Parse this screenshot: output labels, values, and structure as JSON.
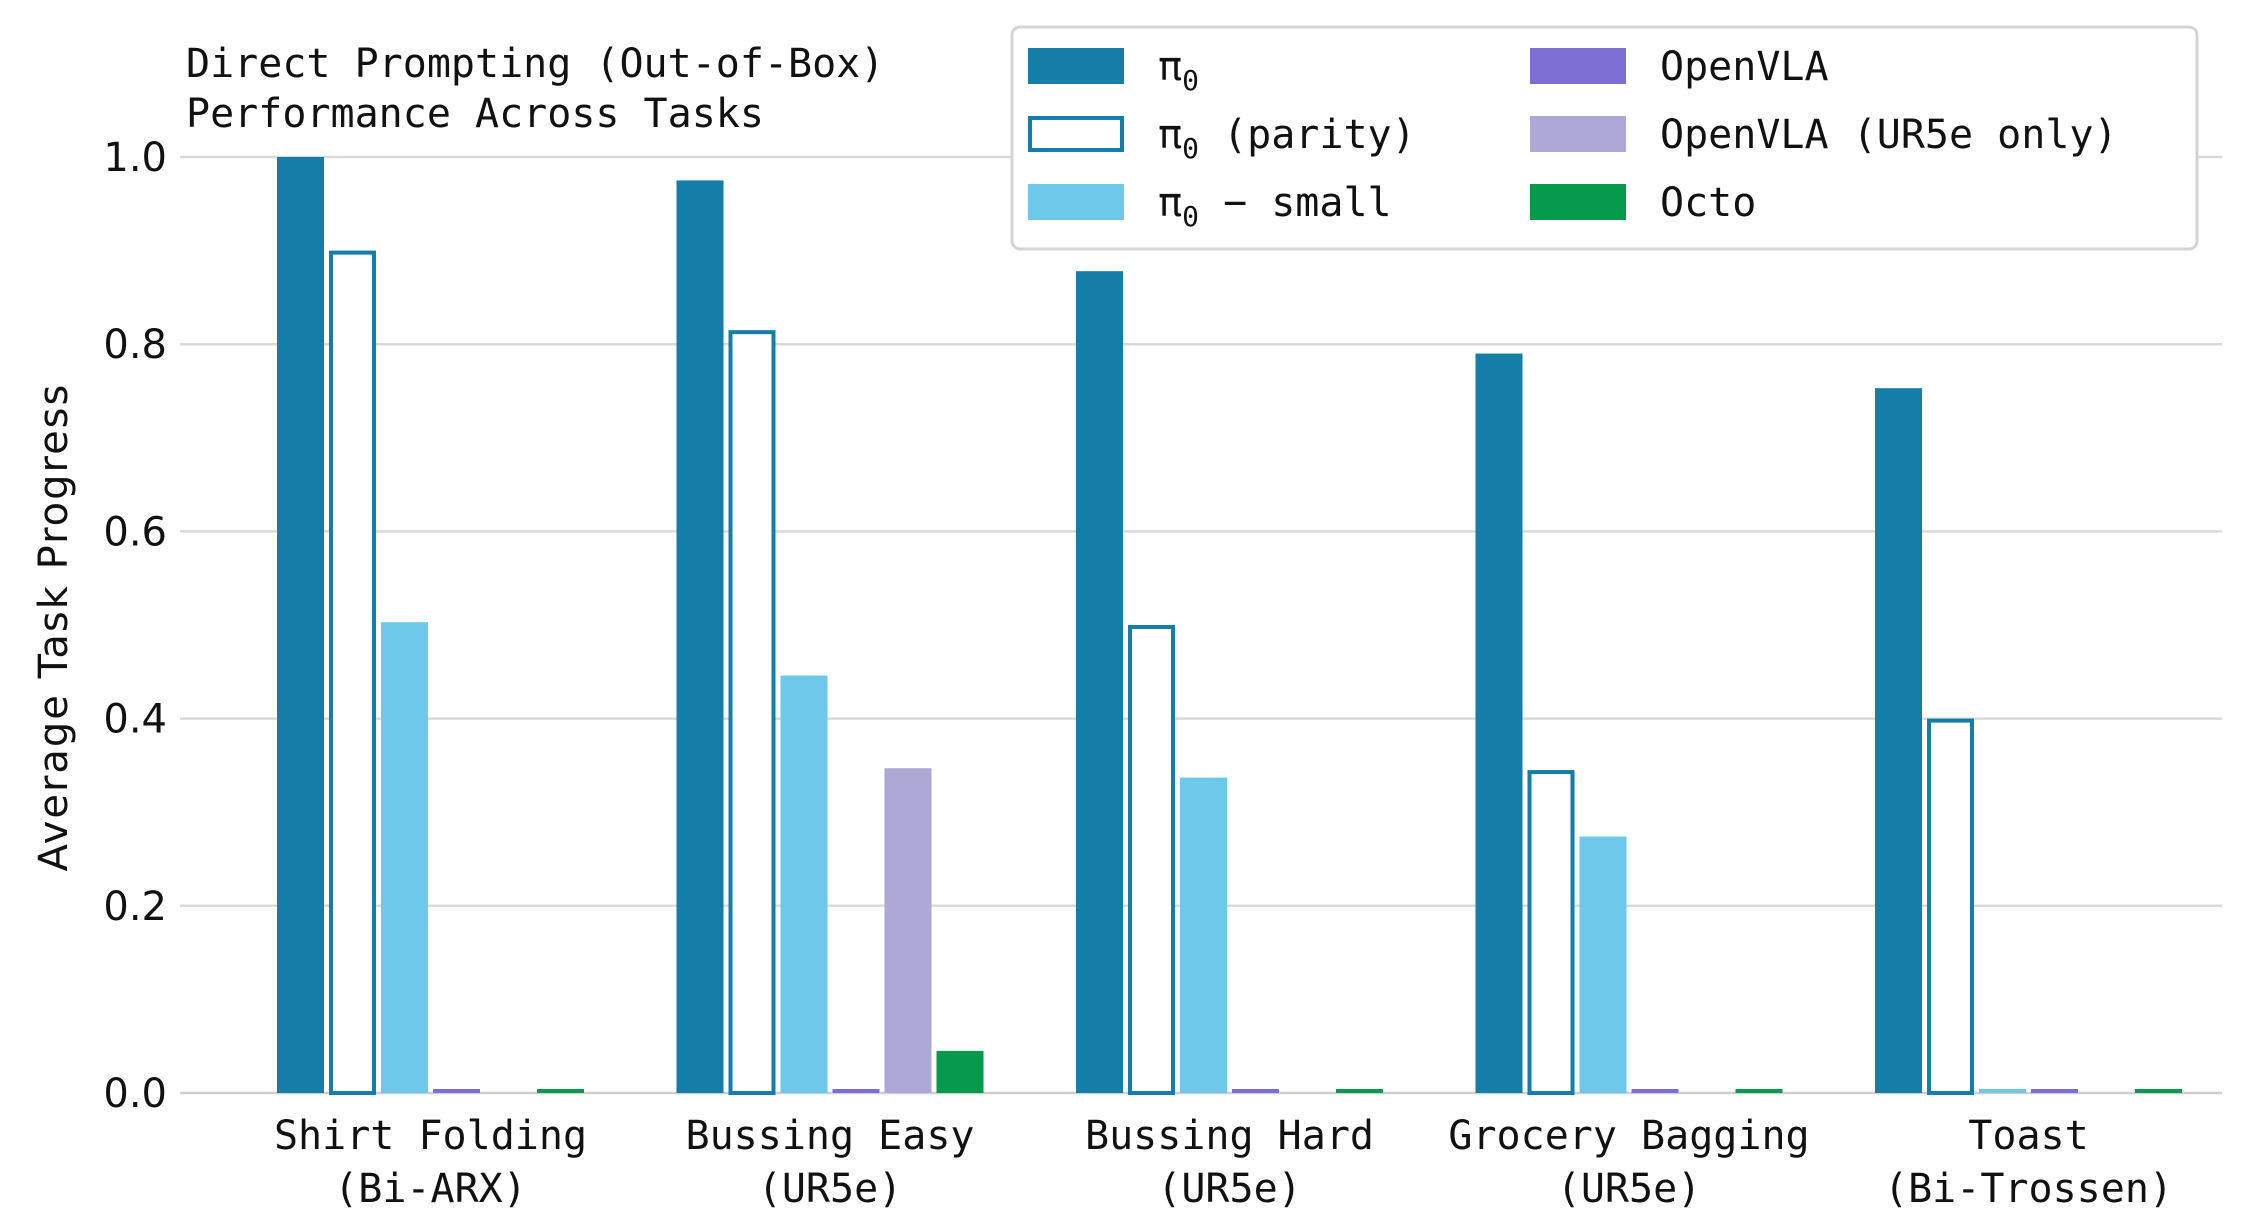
{
  "chart_data": {
    "type": "bar",
    "title": [
      "Direct Prompting (Out-of-Box)",
      "Performance Across Tasks"
    ],
    "xlabel": "",
    "ylabel": "Average Task Progress",
    "ylim": [
      0,
      1.0
    ],
    "yticks": [
      "0.0",
      "0.2",
      "0.4",
      "0.6",
      "0.8",
      "1.0"
    ],
    "grid": "horizontal",
    "legend_position": "top-right",
    "categories": [
      [
        "Shirt Folding",
        "(Bi-ARX)"
      ],
      [
        "Bussing Easy",
        "(UR5e)"
      ],
      [
        "Bussing Hard",
        "(UR5e)"
      ],
      [
        "Grocery Bagging",
        "(UR5e)"
      ],
      [
        "Toast",
        "(Bi-Trossen)"
      ]
    ],
    "series": [
      {
        "name": "π0",
        "name_base": "π",
        "name_sub": "0",
        "name_suffix": "",
        "color": "#147da8",
        "style": "filled",
        "values": [
          1.0,
          0.975,
          0.878,
          0.79,
          0.753
        ]
      },
      {
        "name": "π0 (parity)",
        "name_base": "π",
        "name_sub": "0",
        "name_suffix": " (parity)",
        "color": "#147da8",
        "style": "outline",
        "values": [
          0.9,
          0.815,
          0.5,
          0.345,
          0.4
        ]
      },
      {
        "name": "π0 − small",
        "name_base": "π",
        "name_sub": "0",
        "name_suffix": " − small",
        "color": "#6ec8ea",
        "style": "filled",
        "values": [
          0.503,
          0.446,
          0.337,
          0.274,
          0.0
        ]
      },
      {
        "name": "OpenVLA",
        "name_base": "OpenVLA",
        "name_sub": "",
        "name_suffix": "",
        "color": "#7b6fd4",
        "style": "filled",
        "values": [
          0.0,
          0.0,
          0.0,
          0.0,
          0.0
        ]
      },
      {
        "name": "OpenVLA (UR5e only)",
        "name_base": "OpenVLA (UR5e only)",
        "name_sub": "",
        "name_suffix": "",
        "color": "#ada8d6",
        "style": "filled",
        "values": [
          null,
          0.347,
          null,
          null,
          null
        ]
      },
      {
        "name": "Octo",
        "name_base": "Octo",
        "name_sub": "",
        "name_suffix": "",
        "color": "#069a4d",
        "style": "filled",
        "values": [
          0.0,
          0.045,
          0.0,
          0.0,
          0.0
        ]
      }
    ]
  }
}
